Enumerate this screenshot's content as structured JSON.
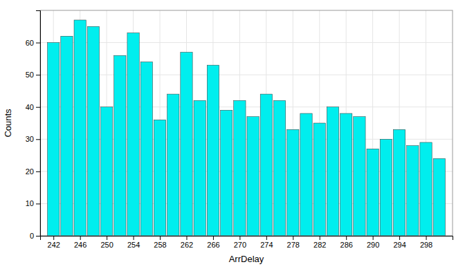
{
  "chart_data": {
    "type": "bar",
    "x": [
      242,
      244,
      246,
      248,
      250,
      252,
      254,
      256,
      258,
      260,
      262,
      264,
      266,
      268,
      270,
      272,
      274,
      276,
      278,
      280,
      282,
      284,
      286,
      288,
      290,
      292,
      294,
      296,
      298,
      300
    ],
    "values": [
      60,
      62,
      67,
      65,
      40,
      56,
      63,
      54,
      36,
      44,
      57,
      42,
      53,
      39,
      42,
      37,
      44,
      42,
      33,
      38,
      35,
      40,
      38,
      37,
      27,
      30,
      33,
      28,
      29,
      24
    ],
    "color": "#00EEEE",
    "x_label": "ArrDelay",
    "y_label": "Counts",
    "xlim": [
      240,
      302
    ],
    "ylim": [
      0,
      70
    ],
    "xticks": [
      242,
      246,
      250,
      254,
      258,
      262,
      266,
      270,
      274,
      278,
      282,
      286,
      290,
      294,
      298
    ],
    "yticks": [
      0,
      10,
      20,
      30,
      40,
      50,
      60
    ],
    "grid": true
  }
}
